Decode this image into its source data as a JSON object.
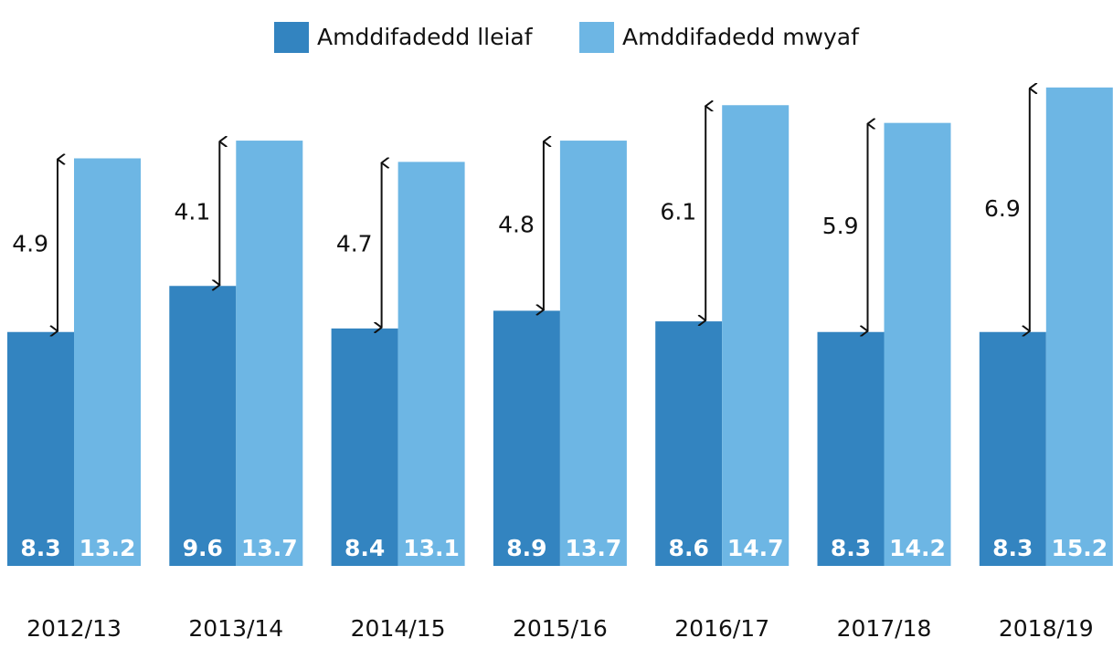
{
  "chart_data": {
    "type": "bar",
    "categories": [
      "2012/13",
      "2013/14",
      "2014/15",
      "2015/16",
      "2016/17",
      "2017/18",
      "2018/19"
    ],
    "series": [
      {
        "name": "Amddifadedd lleiaf",
        "color": "#3384c0",
        "values": [
          8.3,
          9.6,
          8.4,
          8.9,
          8.6,
          8.3,
          8.3
        ]
      },
      {
        "name": "Amddifadedd mwyaf",
        "color": "#6db6e4",
        "values": [
          13.2,
          13.7,
          13.1,
          13.7,
          14.7,
          14.2,
          15.2
        ]
      }
    ],
    "gaps": [
      4.9,
      4.1,
      4.7,
      4.8,
      6.1,
      5.9,
      6.9
    ],
    "ylim": [
      1.7,
      16.2
    ],
    "legend": "top"
  }
}
